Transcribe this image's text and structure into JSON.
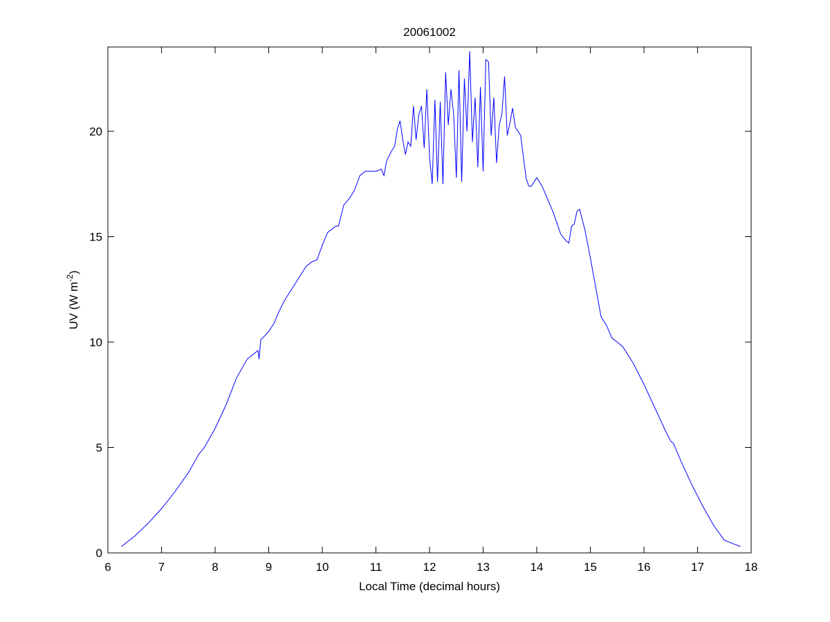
{
  "chart_data": {
    "type": "line",
    "title": "20061002",
    "xlabel": "Local Time (decimal hours)",
    "ylabel": "UV (W m",
    "ylabel_sup": "-2",
    "ylabel_close": ")",
    "xlim": [
      6,
      18
    ],
    "ylim": [
      0,
      24
    ],
    "xticks": [
      6,
      7,
      8,
      9,
      10,
      11,
      12,
      13,
      14,
      15,
      16,
      17,
      18
    ],
    "yticks": [
      0,
      5,
      10,
      15,
      20
    ],
    "grid": false,
    "line_color": "#0000ff",
    "series": [
      {
        "x": [
          6.25,
          6.5,
          6.75,
          7.0,
          7.25,
          7.5,
          7.7,
          7.8,
          8.0,
          8.2,
          8.4,
          8.6,
          8.7,
          8.8,
          8.82,
          8.85,
          9.0,
          9.1,
          9.15,
          9.2,
          9.3,
          9.5,
          9.7,
          9.8,
          9.9,
          10.0,
          10.1,
          10.25,
          10.3,
          10.4,
          10.5,
          10.6,
          10.7,
          10.8,
          10.9,
          11.0,
          11.1,
          11.15,
          11.2,
          11.3,
          11.35,
          11.4,
          11.45,
          11.5,
          11.55,
          11.6,
          11.65,
          11.7,
          11.75,
          11.8,
          11.85,
          11.9,
          11.95,
          12.0,
          12.05,
          12.1,
          12.15,
          12.2,
          12.25,
          12.3,
          12.35,
          12.4,
          12.45,
          12.5,
          12.55,
          12.6,
          12.65,
          12.7,
          12.75,
          12.8,
          12.85,
          12.9,
          12.95,
          13.0,
          13.05,
          13.1,
          13.15,
          13.2,
          13.25,
          13.3,
          13.35,
          13.4,
          13.45,
          13.5,
          13.55,
          13.6,
          13.7,
          13.8,
          13.85,
          13.9,
          14.0,
          14.1,
          14.3,
          14.45,
          14.55,
          14.6,
          14.65,
          14.7,
          14.75,
          14.8,
          14.9,
          15.0,
          15.1,
          15.2,
          15.3,
          15.4,
          15.5,
          15.6,
          15.8,
          16.0,
          16.2,
          16.4,
          16.5,
          16.55,
          16.7,
          16.9,
          17.1,
          17.3,
          17.5,
          17.7,
          17.8
        ],
        "y": [
          0.3,
          0.8,
          1.4,
          2.1,
          2.9,
          3.8,
          4.7,
          5.0,
          5.9,
          7.0,
          8.3,
          9.2,
          9.4,
          9.6,
          9.2,
          10.1,
          10.5,
          10.9,
          11.2,
          11.5,
          12.0,
          12.8,
          13.6,
          13.8,
          13.9,
          14.6,
          15.2,
          15.5,
          15.5,
          16.5,
          16.8,
          17.2,
          17.9,
          18.1,
          18.1,
          18.1,
          18.2,
          17.9,
          18.6,
          19.1,
          19.3,
          20.1,
          20.5,
          19.6,
          18.9,
          19.5,
          19.3,
          21.2,
          19.6,
          20.8,
          21.2,
          19.2,
          22.0,
          18.8,
          17.5,
          21.5,
          17.6,
          21.4,
          17.5,
          22.8,
          20.3,
          22.0,
          20.8,
          17.8,
          22.9,
          17.6,
          22.5,
          20.0,
          23.8,
          19.5,
          21.6,
          18.3,
          22.1,
          18.1,
          23.4,
          23.3,
          19.8,
          21.6,
          18.5,
          20.3,
          20.8,
          22.6,
          19.8,
          20.4,
          21.1,
          20.2,
          19.8,
          17.8,
          17.4,
          17.4,
          17.8,
          17.4,
          16.2,
          15.1,
          14.8,
          14.7,
          15.5,
          15.6,
          16.2,
          16.3,
          15.3,
          14.0,
          12.6,
          11.2,
          10.8,
          10.2,
          10.0,
          9.8,
          9.0,
          8.0,
          6.9,
          5.8,
          5.3,
          5.2,
          4.3,
          3.2,
          2.2,
          1.3,
          0.6,
          0.4,
          0.3
        ]
      }
    ]
  }
}
